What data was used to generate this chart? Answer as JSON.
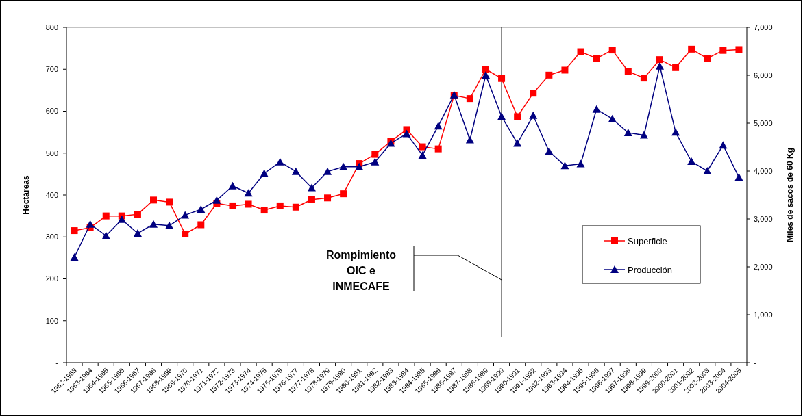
{
  "chart_data": {
    "type": "line",
    "ylabel": "Hectáreas",
    "y2label": "Miles de sacos de 60 Kg",
    "categories": [
      "1962-1963",
      "1963-1964",
      "1964-1965",
      "1965-1966",
      "1966-1967",
      "1967-1968",
      "1968-1969",
      "1969-1970",
      "1970-1971",
      "1971-1972",
      "1972-1973",
      "1973-1974",
      "1974-1975",
      "1975-1976",
      "1976-1977",
      "1977-1978",
      "1978-1979",
      "1979-1980",
      "1980-1981",
      "1981-1982",
      "1982-1983",
      "1983-1984",
      "1984-1985",
      "1985-1986",
      "1986-1987",
      "1987-1988",
      "1988-1989",
      "1989-1990",
      "1990-1991",
      "1991-1992",
      "1992-1993",
      "1993-1994",
      "1994-1995",
      "1995-1996",
      "1996-1997",
      "1997-1998",
      "1998-1999",
      "1999-2000",
      "2000-2001",
      "2001-2002",
      "2002-2003",
      "2003-2004",
      "2004-2005"
    ],
    "series": [
      {
        "name": "Superficie",
        "color": "#ff0000",
        "marker": "square",
        "values": [
          315,
          322,
          350,
          350,
          354,
          388,
          383,
          307,
          329,
          380,
          374,
          378,
          364,
          374,
          371,
          389,
          393,
          403,
          475,
          497,
          528,
          556,
          515,
          510,
          638,
          630,
          700,
          678,
          587,
          643,
          686,
          698,
          742,
          726,
          746,
          695,
          679,
          723,
          704,
          748,
          726,
          745,
          747
        ]
      },
      {
        "name": "Producción",
        "color": "#000080",
        "marker": "triangle",
        "axis": "y2",
        "values": [
          2200,
          2890,
          2650,
          2990,
          2700,
          2890,
          2860,
          3080,
          3200,
          3390,
          3690,
          3540,
          3950,
          4190,
          3990,
          3650,
          3990,
          4090,
          4090,
          4190,
          4580,
          4780,
          4330,
          4940,
          5590,
          4650,
          6000,
          5140,
          4580,
          5160,
          4410,
          4110,
          4150,
          5290,
          5090,
          4800,
          4750,
          6190,
          4810,
          4200,
          4000,
          4540,
          3870
        ]
      }
    ],
    "ylim": [
      0,
      800
    ],
    "yticks": [
      {
        "value": 0,
        "label": "-"
      },
      100,
      200,
      300,
      400,
      500,
      600,
      700,
      800
    ],
    "y2lim": [
      0,
      7000
    ],
    "y2ticks": [
      {
        "value": 0,
        "label": "-"
      },
      {
        "value": 1000,
        "label": "1,000"
      },
      {
        "value": 2000,
        "label": "2,000"
      },
      {
        "value": 3000,
        "label": "3,000"
      },
      {
        "value": 4000,
        "label": "4,000"
      },
      {
        "value": 5000,
        "label": "5,000"
      },
      {
        "value": 6000,
        "label": "6,000"
      },
      {
        "value": 7000,
        "label": "7,000"
      }
    ],
    "ref_lines": [
      {
        "axis": "x",
        "value": "1989-1990",
        "color": "#000000"
      }
    ],
    "annotations": [
      "Rompimiento OIC e INMECAFE"
    ],
    "legend": "right",
    "grid": false
  }
}
